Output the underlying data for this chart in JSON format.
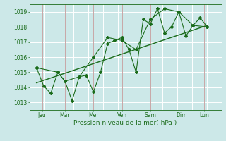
{
  "xlabel": "Pression niveau de la mer( hPa )",
  "bg_color": "#cce8e8",
  "grid_color": "#ffffff",
  "line_color": "#1a6b1a",
  "xlim": [
    0,
    13.5
  ],
  "ylim": [
    1012.5,
    1019.5
  ],
  "yticks": [
    1013,
    1014,
    1015,
    1016,
    1017,
    1018,
    1019
  ],
  "xtick_labels": [
    "Jeu",
    "Mar",
    "Mer",
    "Ven",
    "Sam",
    "Dim",
    "Lun"
  ],
  "xtick_positions": [
    0.9,
    2.5,
    4.5,
    6.5,
    8.5,
    10.7,
    12.3
  ],
  "vline_positions": [
    0.9,
    2.5,
    4.5,
    6.5,
    8.5,
    10.7,
    12.3
  ],
  "series1_x": [
    0.5,
    1.0,
    1.5,
    2.0,
    2.5,
    3.0,
    3.5,
    4.0,
    4.5,
    5.0,
    5.5,
    6.0,
    6.5,
    7.0,
    7.5,
    8.0,
    8.5,
    9.0,
    9.5,
    10.0,
    10.5,
    11.0,
    11.5,
    12.0,
    12.5
  ],
  "series1_y": [
    1015.3,
    1014.1,
    1013.6,
    1015.0,
    1014.4,
    1013.1,
    1014.7,
    1014.8,
    1013.7,
    1015.0,
    1016.9,
    1017.1,
    1017.3,
    1016.5,
    1015.0,
    1018.5,
    1018.2,
    1019.2,
    1017.6,
    1018.0,
    1019.0,
    1017.4,
    1018.1,
    1018.6,
    1018.0
  ],
  "series2_x": [
    0.5,
    2.0,
    2.5,
    3.5,
    4.5,
    5.5,
    6.5,
    7.5,
    8.5,
    9.5,
    10.5,
    11.5,
    12.5
  ],
  "series2_y": [
    1015.3,
    1015.0,
    1014.4,
    1014.7,
    1016.0,
    1017.3,
    1017.1,
    1016.5,
    1018.5,
    1019.2,
    1019.0,
    1018.1,
    1018.0
  ],
  "trend_x": [
    0.5,
    12.5
  ],
  "trend_y": [
    1014.3,
    1018.1
  ],
  "figsize": [
    3.2,
    2.0
  ],
  "dpi": 100
}
